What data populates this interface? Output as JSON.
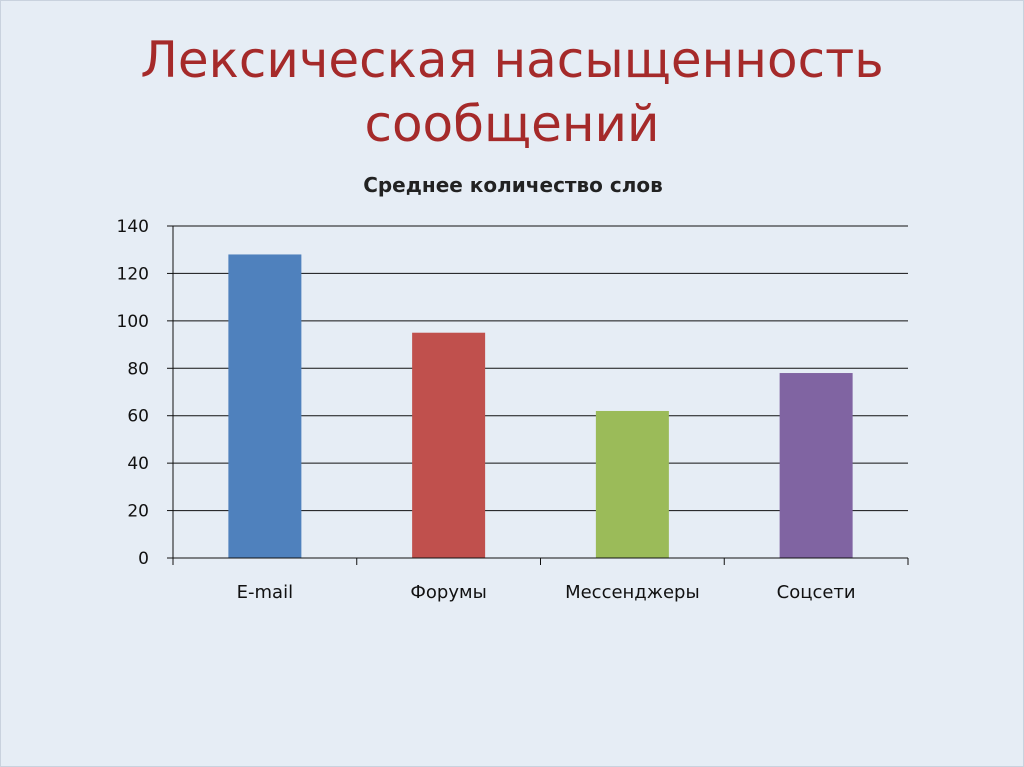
{
  "slide": {
    "title_line1": "Лексическая насыщенность",
    "title_line2": "сообщений",
    "title_color": "#a52a2a",
    "background": "#e6edf5"
  },
  "chart_data": {
    "type": "bar",
    "title": "Среднее количество слов",
    "categories": [
      "E-mail",
      "Форумы",
      "Мессенджеры",
      "Соцсети"
    ],
    "values": [
      128,
      95,
      62,
      78
    ],
    "colors": [
      "#4f81bd",
      "#c0504d",
      "#9bbb59",
      "#8064a2"
    ],
    "ylim": [
      0,
      140
    ],
    "yticks": [
      0,
      20,
      40,
      60,
      80,
      100,
      120,
      140
    ],
    "xlabel": "",
    "ylabel": "",
    "grid": true,
    "legend": "none"
  }
}
